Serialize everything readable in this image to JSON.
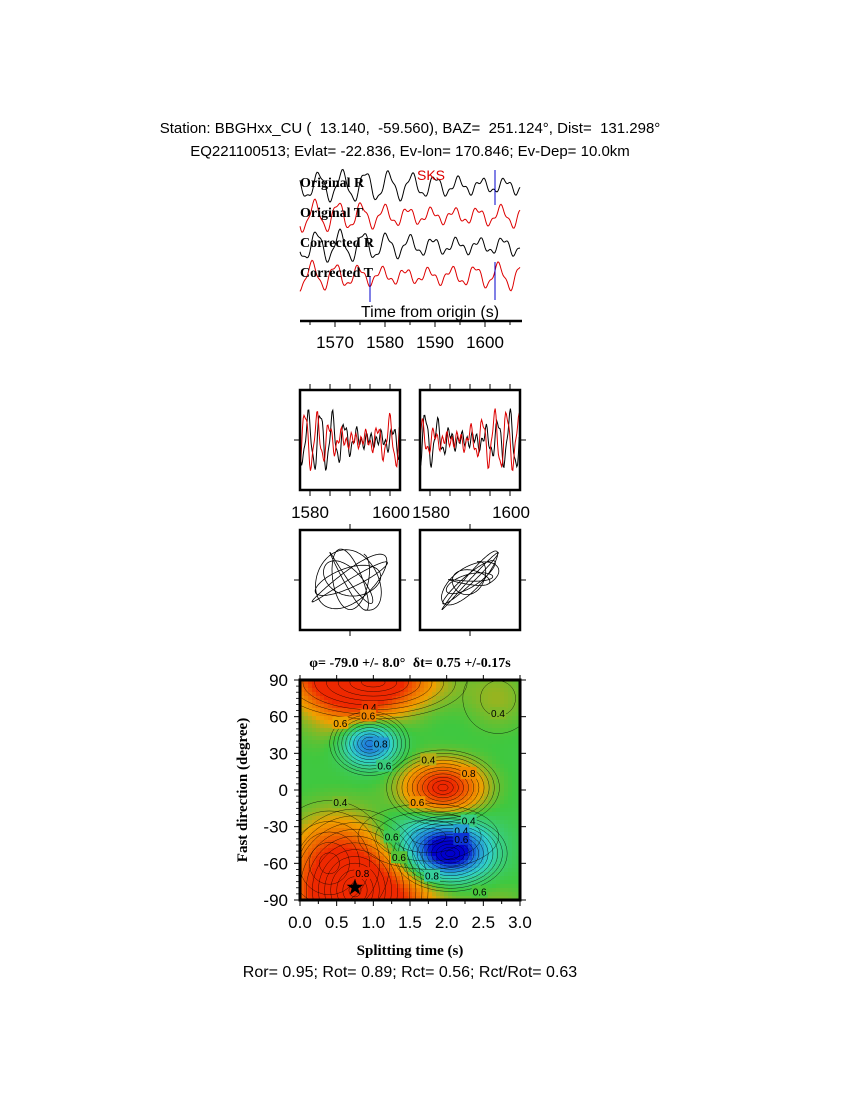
{
  "header": {
    "line1": "Station: BBGHxx_CU (  13.140,  -59.560), BAZ=  251.124°, Dist=  131.298°",
    "line2": "EQ221100513; Evlat= -22.836, Ev-lon= 170.846; Ev-Dep= 10.0km"
  },
  "traces_panel": {
    "phase_label": "SKS",
    "trace_labels": [
      "Original R",
      "Original T",
      "Corrected R",
      "Corrected T"
    ],
    "xlabel": "Time from origin (s)",
    "xticks": [
      1570,
      1580,
      1590,
      1600
    ],
    "window_start": 1577.0,
    "window_end": 1602.0,
    "trace_colors": [
      "#000000",
      "#dd0000",
      "#000000",
      "#dd0000"
    ]
  },
  "waveform_panels": {
    "left_xticks": [
      1580,
      1600
    ],
    "right_xticks": [
      1580,
      1600
    ]
  },
  "grid_panel": {
    "title_phi": "φ= -79.0 +/- 8.0°",
    "title_dt": "δt= 0.75 +/-0.17s",
    "xlabel": "Splitting time (s)",
    "ylabel": "Fast direction (degree)",
    "xticks": [
      "0.0",
      "0.5",
      "1.0",
      "1.5",
      "2.0",
      "2.5",
      "3.0"
    ],
    "yticks": [
      "90",
      "60",
      "30",
      "0",
      "-30",
      "-60",
      "-90"
    ],
    "xlim": [
      0,
      3
    ],
    "ylim": [
      -90,
      90
    ],
    "best_dt": 0.75,
    "best_phi": -79,
    "contour_labels": [
      {
        "text": "0.4",
        "dt": 0.95,
        "phi": 68
      },
      {
        "text": "0.6",
        "dt": 0.93,
        "phi": 61
      },
      {
        "text": "0.4",
        "dt": 2.7,
        "phi": 63
      },
      {
        "text": "0.6",
        "dt": 0.55,
        "phi": 55
      },
      {
        "text": "0.8",
        "dt": 1.1,
        "phi": 38
      },
      {
        "text": "0.6",
        "dt": 1.15,
        "phi": 20
      },
      {
        "text": "0.4",
        "dt": 1.75,
        "phi": 25
      },
      {
        "text": "0.8",
        "dt": 2.3,
        "phi": 14
      },
      {
        "text": "0.6",
        "dt": 1.6,
        "phi": -10
      },
      {
        "text": "0.4",
        "dt": 0.55,
        "phi": -10
      },
      {
        "text": "0.4",
        "dt": 2.3,
        "phi": -25
      },
      {
        "text": "0.4",
        "dt": 2.2,
        "phi": -33
      },
      {
        "text": "0.6",
        "dt": 2.2,
        "phi": -40
      },
      {
        "text": "0.6",
        "dt": 1.25,
        "phi": -38
      },
      {
        "text": "0.6",
        "dt": 1.35,
        "phi": -55
      },
      {
        "text": "0.8",
        "dt": 0.85,
        "phi": -68
      },
      {
        "text": "0.8",
        "dt": 1.8,
        "phi": -70
      },
      {
        "text": "0.6",
        "dt": 2.45,
        "phi": -83
      }
    ]
  },
  "footer": {
    "text": "Ror= 0.95; Rot= 0.89; Rct= 0.56; Rct/Rot= 0.63"
  },
  "chart_data": {
    "type": "heatmap",
    "title": "φ= -79.0 +/- 8.0° δt= 0.75 +/-0.17s",
    "xlabel": "Splitting time (s)",
    "ylabel": "Fast direction (degree)",
    "xlim": [
      0,
      3
    ],
    "ylim": [
      -90,
      90
    ],
    "best_fit": {
      "dt": 0.75,
      "dt_err": 0.17,
      "phi": -79.0,
      "phi_err": 8.0
    },
    "colorscale": [
      {
        "value": 0.0,
        "color": "#ee2800"
      },
      {
        "value": 0.3,
        "color": "#f0a000"
      },
      {
        "value": 0.45,
        "color": "#3fc83f"
      },
      {
        "value": 0.65,
        "color": "#32d2c8"
      },
      {
        "value": 0.85,
        "color": "#1e78dc"
      },
      {
        "value": 1.0,
        "color": "#0000cc"
      }
    ]
  }
}
